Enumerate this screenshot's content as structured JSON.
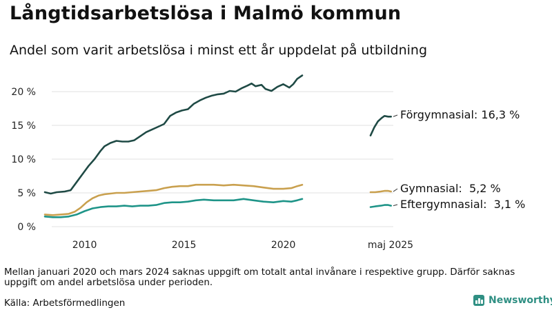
{
  "title": "Långtidsarbetslösa i Malmö kommun",
  "subtitle": "Andel som varit arbetslösa i minst ett år uppdelat på utbildning",
  "note": "Mellan januari 2020 och mars 2024 saknas uppgift om totalt antal invånare i respektive grupp. Därför saknas uppgift om andel arbetslösa under perioden.",
  "source": "Källa: Arbetsförmedlingen",
  "brand": "Newsworthy",
  "chart_data": {
    "type": "line",
    "ylim": [
      0,
      22.5
    ],
    "y_ticks": [
      {
        "value": 0,
        "label": "0 %"
      },
      {
        "value": 5,
        "label": "5 %"
      },
      {
        "value": 10,
        "label": "10 %"
      },
      {
        "value": 15,
        "label": "15 %"
      },
      {
        "value": 20,
        "label": "20 %"
      }
    ],
    "x_ticks": [
      {
        "value": 2010,
        "label": "2010"
      },
      {
        "value": 2015,
        "label": "2015"
      },
      {
        "value": 2020,
        "label": "2020"
      }
    ],
    "x_range_main": [
      2008.0,
      2020.95
    ],
    "inset": {
      "x_range": [
        2024.25,
        2025.4
      ],
      "label": "maj 2025"
    },
    "series": [
      {
        "name": "Förgymnasial",
        "color": "#1f4a45",
        "end_label": "Förgymnasial: 16,3 %",
        "points": [
          [
            2008.0,
            5.1
          ],
          [
            2008.3,
            4.9
          ],
          [
            2008.6,
            5.1
          ],
          [
            2009.0,
            5.2
          ],
          [
            2009.3,
            5.4
          ],
          [
            2009.6,
            6.6
          ],
          [
            2009.9,
            7.8
          ],
          [
            2010.2,
            9.0
          ],
          [
            2010.5,
            10.0
          ],
          [
            2010.8,
            11.2
          ],
          [
            2011.0,
            11.9
          ],
          [
            2011.3,
            12.4
          ],
          [
            2011.6,
            12.7
          ],
          [
            2011.9,
            12.6
          ],
          [
            2012.2,
            12.6
          ],
          [
            2012.5,
            12.8
          ],
          [
            2012.8,
            13.4
          ],
          [
            2013.1,
            14.0
          ],
          [
            2013.4,
            14.4
          ],
          [
            2013.7,
            14.8
          ],
          [
            2014.0,
            15.2
          ],
          [
            2014.3,
            16.4
          ],
          [
            2014.6,
            16.9
          ],
          [
            2014.9,
            17.2
          ],
          [
            2015.2,
            17.4
          ],
          [
            2015.5,
            18.2
          ],
          [
            2015.8,
            18.7
          ],
          [
            2016.1,
            19.1
          ],
          [
            2016.4,
            19.4
          ],
          [
            2016.7,
            19.6
          ],
          [
            2017.0,
            19.7
          ],
          [
            2017.3,
            20.1
          ],
          [
            2017.6,
            20.0
          ],
          [
            2017.9,
            20.5
          ],
          [
            2018.2,
            20.9
          ],
          [
            2018.4,
            21.2
          ],
          [
            2018.6,
            20.8
          ],
          [
            2018.9,
            21.0
          ],
          [
            2019.1,
            20.4
          ],
          [
            2019.4,
            20.1
          ],
          [
            2019.7,
            20.7
          ],
          [
            2020.0,
            21.1
          ],
          [
            2020.3,
            20.6
          ],
          [
            2020.5,
            21.1
          ],
          [
            2020.7,
            21.9
          ],
          [
            2020.95,
            22.4
          ]
        ],
        "inset_points": [
          [
            2024.25,
            13.5
          ],
          [
            2024.45,
            14.7
          ],
          [
            2024.65,
            15.6
          ],
          [
            2024.85,
            16.1
          ],
          [
            2025.0,
            16.4
          ],
          [
            2025.2,
            16.3
          ],
          [
            2025.35,
            16.3
          ]
        ]
      },
      {
        "name": "Gymnasial",
        "color": "#c9a04e",
        "end_label": "Gymnasial:  5,2 %",
        "points": [
          [
            2008.0,
            1.8
          ],
          [
            2008.4,
            1.7
          ],
          [
            2008.8,
            1.8
          ],
          [
            2009.2,
            1.9
          ],
          [
            2009.5,
            2.2
          ],
          [
            2009.8,
            2.8
          ],
          [
            2010.1,
            3.6
          ],
          [
            2010.4,
            4.2
          ],
          [
            2010.7,
            4.6
          ],
          [
            2011.0,
            4.8
          ],
          [
            2011.3,
            4.9
          ],
          [
            2011.6,
            5.0
          ],
          [
            2012.0,
            5.0
          ],
          [
            2012.4,
            5.1
          ],
          [
            2012.8,
            5.2
          ],
          [
            2013.2,
            5.3
          ],
          [
            2013.6,
            5.4
          ],
          [
            2014.0,
            5.7
          ],
          [
            2014.4,
            5.9
          ],
          [
            2014.8,
            6.0
          ],
          [
            2015.2,
            6.0
          ],
          [
            2015.6,
            6.2
          ],
          [
            2016.0,
            6.2
          ],
          [
            2016.5,
            6.2
          ],
          [
            2017.0,
            6.1
          ],
          [
            2017.5,
            6.2
          ],
          [
            2018.0,
            6.1
          ],
          [
            2018.5,
            6.0
          ],
          [
            2019.0,
            5.8
          ],
          [
            2019.5,
            5.6
          ],
          [
            2020.0,
            5.6
          ],
          [
            2020.4,
            5.7
          ],
          [
            2020.7,
            6.0
          ],
          [
            2020.95,
            6.2
          ]
        ],
        "inset_points": [
          [
            2024.25,
            5.1
          ],
          [
            2024.5,
            5.1
          ],
          [
            2024.8,
            5.2
          ],
          [
            2025.0,
            5.3
          ],
          [
            2025.2,
            5.3
          ],
          [
            2025.35,
            5.2
          ]
        ]
      },
      {
        "name": "Eftergymnasial",
        "color": "#1e9488",
        "end_label": "Eftergymnasial:  3,1 %",
        "points": [
          [
            2008.0,
            1.5
          ],
          [
            2008.4,
            1.4
          ],
          [
            2008.8,
            1.4
          ],
          [
            2009.2,
            1.5
          ],
          [
            2009.6,
            1.8
          ],
          [
            2010.0,
            2.3
          ],
          [
            2010.4,
            2.7
          ],
          [
            2010.8,
            2.9
          ],
          [
            2011.2,
            3.0
          ],
          [
            2011.6,
            3.0
          ],
          [
            2012.0,
            3.1
          ],
          [
            2012.4,
            3.0
          ],
          [
            2012.8,
            3.1
          ],
          [
            2013.2,
            3.1
          ],
          [
            2013.6,
            3.2
          ],
          [
            2014.0,
            3.5
          ],
          [
            2014.4,
            3.6
          ],
          [
            2014.8,
            3.6
          ],
          [
            2015.2,
            3.7
          ],
          [
            2015.6,
            3.9
          ],
          [
            2016.0,
            4.0
          ],
          [
            2016.5,
            3.9
          ],
          [
            2017.0,
            3.9
          ],
          [
            2017.5,
            3.9
          ],
          [
            2018.0,
            4.1
          ],
          [
            2018.5,
            3.9
          ],
          [
            2019.0,
            3.7
          ],
          [
            2019.5,
            3.6
          ],
          [
            2020.0,
            3.8
          ],
          [
            2020.4,
            3.7
          ],
          [
            2020.7,
            3.9
          ],
          [
            2020.95,
            4.1
          ]
        ],
        "inset_points": [
          [
            2024.25,
            2.9
          ],
          [
            2024.5,
            3.0
          ],
          [
            2024.8,
            3.1
          ],
          [
            2025.0,
            3.2
          ],
          [
            2025.2,
            3.2
          ],
          [
            2025.35,
            3.1
          ]
        ]
      }
    ]
  }
}
